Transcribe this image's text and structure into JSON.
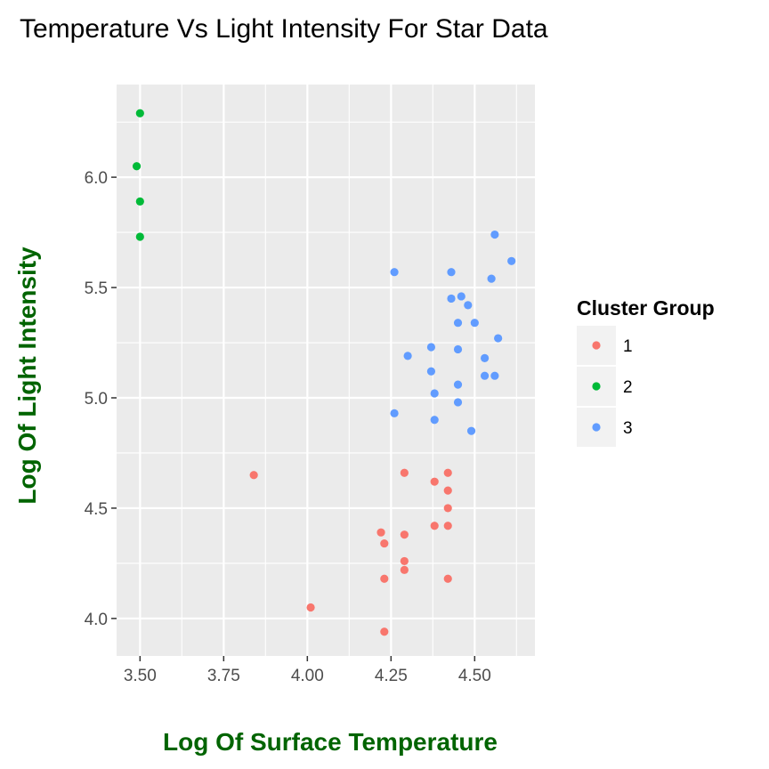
{
  "chart_data": {
    "type": "scatter",
    "title": "Temperature Vs Light Intensity For Star Data",
    "xlabel": "Log Of Surface Temperature",
    "ylabel": "Log Of Light Intensity",
    "xlim": [
      3.43,
      4.68
    ],
    "ylim": [
      3.83,
      6.42
    ],
    "x_ticks": [
      3.5,
      3.75,
      4.0,
      4.25,
      4.5
    ],
    "x_tick_labels": [
      "3.50",
      "3.75",
      "4.00",
      "4.25",
      "4.50"
    ],
    "y_ticks": [
      4.0,
      4.5,
      5.0,
      5.5,
      6.0
    ],
    "y_tick_labels": [
      "4.0",
      "4.5",
      "5.0",
      "5.5",
      "6.0"
    ],
    "grid": true,
    "panel_color": "#ebebeb",
    "axis_title_color": "#006400",
    "legend": {
      "title": "Cluster Group",
      "placement": "right"
    },
    "series": [
      {
        "name": "1",
        "color": "#f8766d",
        "points": [
          {
            "x": 3.84,
            "y": 4.65
          },
          {
            "x": 4.01,
            "y": 4.05
          },
          {
            "x": 4.22,
            "y": 4.39
          },
          {
            "x": 4.23,
            "y": 4.34
          },
          {
            "x": 4.23,
            "y": 4.18
          },
          {
            "x": 4.23,
            "y": 3.94
          },
          {
            "x": 4.29,
            "y": 4.66
          },
          {
            "x": 4.29,
            "y": 4.38
          },
          {
            "x": 4.29,
            "y": 4.26
          },
          {
            "x": 4.29,
            "y": 4.22
          },
          {
            "x": 4.38,
            "y": 4.62
          },
          {
            "x": 4.38,
            "y": 4.42
          },
          {
            "x": 4.42,
            "y": 4.66
          },
          {
            "x": 4.42,
            "y": 4.58
          },
          {
            "x": 4.42,
            "y": 4.5
          },
          {
            "x": 4.42,
            "y": 4.42
          },
          {
            "x": 4.42,
            "y": 4.18
          }
        ]
      },
      {
        "name": "2",
        "color": "#00ba38",
        "points": [
          {
            "x": 3.49,
            "y": 6.05
          },
          {
            "x": 3.5,
            "y": 6.29
          },
          {
            "x": 3.5,
            "y": 5.89
          },
          {
            "x": 3.5,
            "y": 5.73
          }
        ]
      },
      {
        "name": "3",
        "color": "#619cff",
        "points": [
          {
            "x": 4.26,
            "y": 5.57
          },
          {
            "x": 4.26,
            "y": 4.93
          },
          {
            "x": 4.3,
            "y": 5.19
          },
          {
            "x": 4.37,
            "y": 5.23
          },
          {
            "x": 4.37,
            "y": 5.12
          },
          {
            "x": 4.38,
            "y": 5.02
          },
          {
            "x": 4.38,
            "y": 4.9
          },
          {
            "x": 4.43,
            "y": 5.57
          },
          {
            "x": 4.43,
            "y": 5.45
          },
          {
            "x": 4.45,
            "y": 5.34
          },
          {
            "x": 4.45,
            "y": 5.22
          },
          {
            "x": 4.45,
            "y": 5.06
          },
          {
            "x": 4.45,
            "y": 4.98
          },
          {
            "x": 4.46,
            "y": 5.46
          },
          {
            "x": 4.48,
            "y": 5.42
          },
          {
            "x": 4.49,
            "y": 4.85
          },
          {
            "x": 4.5,
            "y": 5.34
          },
          {
            "x": 4.53,
            "y": 5.18
          },
          {
            "x": 4.53,
            "y": 5.1
          },
          {
            "x": 4.55,
            "y": 5.54
          },
          {
            "x": 4.56,
            "y": 5.74
          },
          {
            "x": 4.56,
            "y": 5.1
          },
          {
            "x": 4.57,
            "y": 5.27
          },
          {
            "x": 4.61,
            "y": 5.62
          }
        ]
      }
    ]
  }
}
